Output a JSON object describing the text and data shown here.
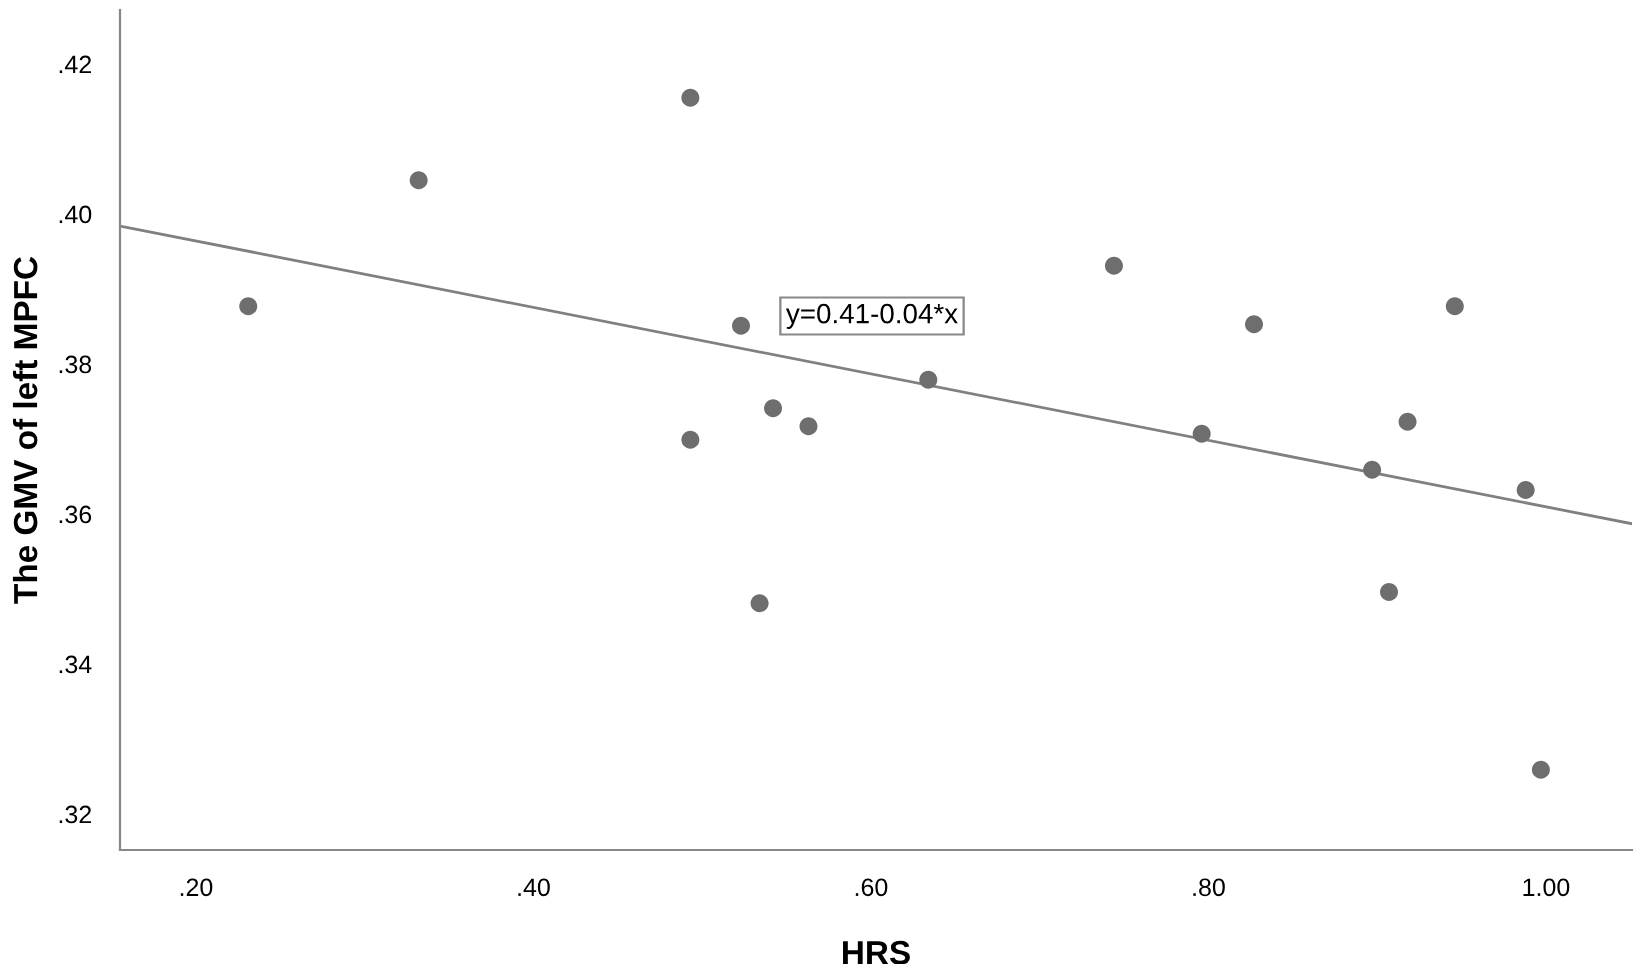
{
  "chart_data": {
    "type": "scatter",
    "xlabel": "HRS",
    "ylabel": "The GMV of left MPFC",
    "xlim": [
      0.155,
      1.051
    ],
    "ylim": [
      0.3152,
      0.4272
    ],
    "xticks": [
      {
        "value": 0.2,
        "label": ".20"
      },
      {
        "value": 0.4,
        "label": ".40"
      },
      {
        "value": 0.6,
        "label": ".60"
      },
      {
        "value": 0.8,
        "label": ".80"
      },
      {
        "value": 1.0,
        "label": "1.00"
      }
    ],
    "yticks": [
      {
        "value": 0.32,
        "label": ".32"
      },
      {
        "value": 0.34,
        "label": ".34"
      },
      {
        "value": 0.36,
        "label": ".36"
      },
      {
        "value": 0.38,
        "label": ".38"
      },
      {
        "value": 0.4,
        "label": ".40"
      },
      {
        "value": 0.42,
        "label": ".42"
      }
    ],
    "grid": false,
    "series": [
      {
        "marker": "circle",
        "color": "#6e6e6e",
        "x": [
          0.231,
          0.332,
          0.493,
          0.493,
          0.523,
          0.542,
          0.534,
          0.563,
          0.634,
          0.744,
          0.796,
          0.827,
          0.897,
          0.907,
          0.918,
          0.946,
          0.988,
          0.997
        ],
        "values": [
          0.3877,
          0.4045,
          0.4155,
          0.3699,
          0.3851,
          0.3741,
          0.3481,
          0.3717,
          0.3779,
          0.3931,
          0.3707,
          0.3853,
          0.3659,
          0.3496,
          0.3723,
          0.3877,
          0.3632,
          0.3259
        ]
      },
      {
        "type": "line",
        "color": "#808080",
        "x": [
          0.155,
          1.051
        ],
        "values": [
          0.3984,
          0.3587
        ]
      }
    ],
    "annotations": [
      "y=0.41-0.04*x"
    ]
  }
}
